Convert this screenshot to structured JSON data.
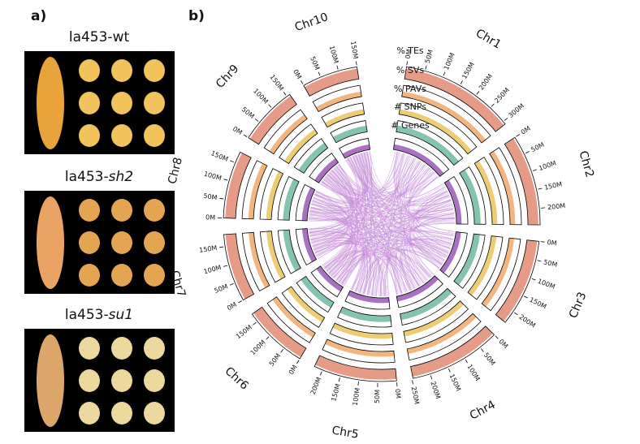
{
  "panels": {
    "a": "a)",
    "b": "b)"
  },
  "samples": [
    {
      "line": "la453-",
      "genotype": "wt",
      "italic": false,
      "cob_color": "#e9a23c",
      "kernel_color": "#f1c35a"
    },
    {
      "line": "la453-",
      "genotype": "sh2",
      "italic": true,
      "cob_color": "#eba364",
      "kernel_color": "#e3a552"
    },
    {
      "line": "la453-",
      "genotype": "su1",
      "italic": true,
      "cob_color": "#dca66a",
      "kernel_color": "#ecd79c"
    }
  ],
  "circos": {
    "tracks": [
      {
        "label": "% TEs",
        "color": "#e28a72"
      },
      {
        "label": "% SVs",
        "color": "#f0a86a"
      },
      {
        "label": "% PAVs",
        "color": "#e9c45e"
      },
      {
        "label": "# SNPs",
        "color": "#6db8a2"
      },
      {
        "label": "# Genes",
        "color": "#9a58b6"
      }
    ],
    "link_color": "#c48bd8",
    "chromosomes": [
      {
        "name": "Chr1",
        "length": 308,
        "ticks": [
          {
            "value": 0,
            "label": "0M"
          },
          {
            "value": 50,
            "label": "50M"
          },
          {
            "value": 100,
            "label": "100M"
          },
          {
            "value": 150,
            "label": "150M"
          },
          {
            "value": 200,
            "label": "200M"
          },
          {
            "value": 250,
            "label": "250M"
          },
          {
            "value": 300,
            "label": "300M"
          }
        ]
      },
      {
        "name": "Chr2",
        "length": 244,
        "ticks": [
          {
            "value": 0,
            "label": "0M"
          },
          {
            "value": 50,
            "label": "50M"
          },
          {
            "value": 100,
            "label": "100M"
          },
          {
            "value": 150,
            "label": "150M"
          },
          {
            "value": 200,
            "label": "200M"
          }
        ]
      },
      {
        "name": "Chr3",
        "length": 235,
        "ticks": [
          {
            "value": 0,
            "label": "0M"
          },
          {
            "value": 50,
            "label": "50M"
          },
          {
            "value": 100,
            "label": "100M"
          },
          {
            "value": 150,
            "label": "150M"
          },
          {
            "value": 200,
            "label": "200M"
          }
        ]
      },
      {
        "name": "Chr4",
        "length": 247,
        "ticks": [
          {
            "value": 0,
            "label": "0M"
          },
          {
            "value": 50,
            "label": "50M"
          },
          {
            "value": 100,
            "label": "100M"
          },
          {
            "value": 150,
            "label": "150M"
          },
          {
            "value": 200,
            "label": "200M"
          },
          {
            "value": 250,
            "label": "250M"
          }
        ]
      },
      {
        "name": "Chr5",
        "length": 223,
        "ticks": [
          {
            "value": 0,
            "label": "0M"
          },
          {
            "value": 50,
            "label": "50M"
          },
          {
            "value": 100,
            "label": "100M"
          },
          {
            "value": 150,
            "label": "150M"
          },
          {
            "value": 200,
            "label": "200M"
          }
        ]
      },
      {
        "name": "Chr6",
        "length": 174,
        "ticks": [
          {
            "value": 0,
            "label": "0M"
          },
          {
            "value": 50,
            "label": "50M"
          },
          {
            "value": 100,
            "label": "100M"
          },
          {
            "value": 150,
            "label": "150M"
          }
        ]
      },
      {
        "name": "Chr7",
        "length": 182,
        "ticks": [
          {
            "value": 0,
            "label": "0M"
          },
          {
            "value": 50,
            "label": "50M"
          },
          {
            "value": 100,
            "label": "100M"
          },
          {
            "value": 150,
            "label": "150M"
          }
        ]
      },
      {
        "name": "Chr8",
        "length": 181,
        "ticks": [
          {
            "value": 0,
            "label": "0M"
          },
          {
            "value": 50,
            "label": "50M"
          },
          {
            "value": 100,
            "label": "100M"
          },
          {
            "value": 150,
            "label": "150M"
          }
        ]
      },
      {
        "name": "Chr9",
        "length": 159,
        "ticks": [
          {
            "value": 0,
            "label": "0M"
          },
          {
            "value": 50,
            "label": "50M"
          },
          {
            "value": 100,
            "label": "100M"
          },
          {
            "value": 150,
            "label": "150M"
          }
        ]
      },
      {
        "name": "Chr10",
        "length": 150,
        "ticks": [
          {
            "value": 0,
            "label": "0M"
          },
          {
            "value": 50,
            "label": "50M"
          },
          {
            "value": 100,
            "label": "100M"
          },
          {
            "value": 150,
            "label": "150M"
          }
        ]
      }
    ]
  }
}
